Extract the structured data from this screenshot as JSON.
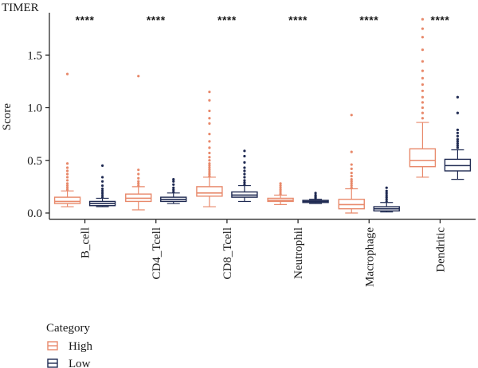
{
  "chart_data": {
    "type": "box",
    "title": "TIMER",
    "xlabel": "",
    "ylabel": "Score",
    "ylim": [
      -0.08,
      1.85
    ],
    "yticks": [
      0.0,
      0.5,
      1.0,
      1.5
    ],
    "ytick_labels": [
      "0.0",
      "0.5",
      "1.0",
      "1.5"
    ],
    "categories": [
      "B_cell",
      "CD4_Tcell",
      "CD8_Tcell",
      "Neutrophil",
      "Macrophage",
      "Dendritic"
    ],
    "significance": [
      "****",
      "****",
      "****",
      "****",
      "****",
      "****"
    ],
    "legend": {
      "title": "Category",
      "position": "bottom-left"
    },
    "grid": false,
    "series": [
      {
        "name": "High",
        "color": "#e8896b",
        "boxes": [
          {
            "min": 0.06,
            "q1": 0.09,
            "median": 0.11,
            "q3": 0.15,
            "max": 0.21,
            "outliers": [
              0.22,
              0.24,
              0.26,
              0.28,
              0.31,
              0.34,
              0.37,
              0.4,
              0.43,
              0.47,
              1.32
            ]
          },
          {
            "min": 0.03,
            "q1": 0.11,
            "median": 0.14,
            "q3": 0.18,
            "max": 0.25,
            "outliers": [
              0.26,
              0.28,
              0.3,
              0.33,
              0.37,
              0.41,
              1.3
            ]
          },
          {
            "min": 0.06,
            "q1": 0.16,
            "median": 0.19,
            "q3": 0.25,
            "max": 0.34,
            "outliers": [
              0.35,
              0.37,
              0.39,
              0.41,
              0.43,
              0.45,
              0.47,
              0.5,
              0.53,
              0.57,
              0.62,
              0.68,
              0.75,
              0.85,
              0.9,
              0.97,
              1.07,
              1.15
            ]
          },
          {
            "min": 0.08,
            "q1": 0.11,
            "median": 0.12,
            "q3": 0.14,
            "max": 0.17,
            "outliers": [
              0.18,
              0.2,
              0.22,
              0.24,
              0.26,
              0.28
            ]
          },
          {
            "min": 0.0,
            "q1": 0.04,
            "median": 0.08,
            "q3": 0.13,
            "max": 0.23,
            "outliers": [
              0.24,
              0.26,
              0.28,
              0.3,
              0.32,
              0.35,
              0.38,
              0.42,
              0.46,
              0.58,
              0.93
            ]
          },
          {
            "min": 0.34,
            "q1": 0.44,
            "median": 0.5,
            "q3": 0.61,
            "max": 0.86,
            "outliers": [
              0.9,
              0.95,
              1.0,
              1.05,
              1.1,
              1.16,
              1.22,
              1.28,
              1.35,
              1.44,
              1.55,
              1.67,
              1.75,
              1.84
            ]
          }
        ]
      },
      {
        "name": "Low",
        "color": "#1f2a52",
        "boxes": [
          {
            "min": 0.06,
            "q1": 0.07,
            "median": 0.09,
            "q3": 0.11,
            "max": 0.14,
            "outliers": [
              0.15,
              0.17,
              0.19,
              0.21,
              0.23,
              0.26,
              0.3,
              0.34,
              0.45
            ]
          },
          {
            "min": 0.09,
            "q1": 0.11,
            "median": 0.13,
            "q3": 0.15,
            "max": 0.19,
            "outliers": [
              0.2,
              0.22,
              0.24,
              0.27,
              0.3,
              0.32
            ]
          },
          {
            "min": 0.11,
            "q1": 0.15,
            "median": 0.17,
            "q3": 0.2,
            "max": 0.26,
            "outliers": [
              0.27,
              0.29,
              0.31,
              0.34,
              0.37,
              0.4,
              0.43,
              0.48,
              0.54,
              0.59
            ]
          },
          {
            "min": 0.09,
            "q1": 0.1,
            "median": 0.11,
            "q3": 0.12,
            "max": 0.13,
            "outliers": [
              0.14,
              0.15,
              0.16,
              0.17,
              0.19
            ]
          },
          {
            "min": 0.01,
            "q1": 0.02,
            "median": 0.04,
            "q3": 0.06,
            "max": 0.1,
            "outliers": [
              0.11,
              0.13,
              0.15,
              0.17,
              0.19,
              0.21,
              0.24
            ]
          },
          {
            "min": 0.32,
            "q1": 0.4,
            "median": 0.45,
            "q3": 0.51,
            "max": 0.6,
            "outliers": [
              0.62,
              0.64,
              0.66,
              0.68,
              0.7,
              0.73,
              0.76,
              0.79,
              0.95,
              1.1
            ]
          }
        ]
      }
    ]
  }
}
